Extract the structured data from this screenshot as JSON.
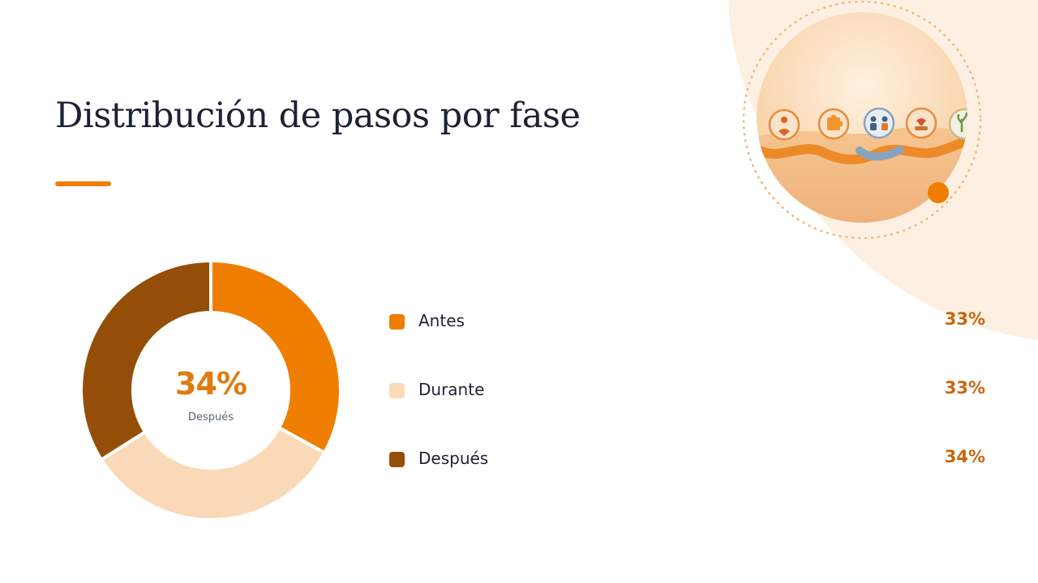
{
  "slide": {
    "title": "Distribución de pasos por fase",
    "accent_color": "#ef7d00"
  },
  "illustration": {
    "icons": [
      "person-heart-icon",
      "puzzle-icon",
      "people-meeting-icon",
      "caregiver-icon",
      "plant-icon"
    ]
  },
  "chart_data": {
    "type": "pie",
    "donut": true,
    "categories": [
      "Antes",
      "Durante",
      "Después"
    ],
    "values": [
      33,
      33,
      34
    ],
    "value_labels": [
      "33%",
      "33%",
      "34%"
    ],
    "colors": [
      "#ef7d00",
      "#fad9b8",
      "#944e08"
    ],
    "center": {
      "value": "34%",
      "label": "Después"
    },
    "legend_placement": "right"
  }
}
